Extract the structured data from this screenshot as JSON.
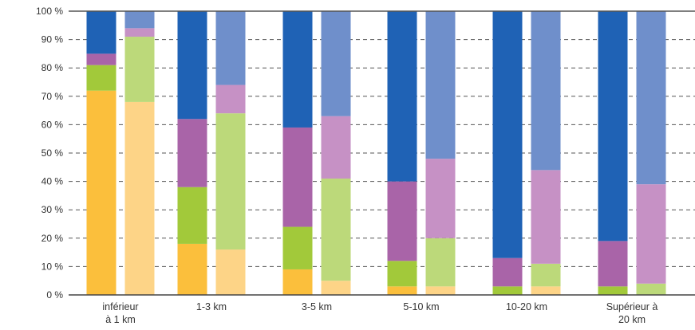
{
  "chart_data": {
    "type": "bar",
    "stacked": true,
    "percent": true,
    "title": "",
    "xlabel": "",
    "ylabel": "",
    "ylim": [
      0,
      100
    ],
    "y_ticks": [
      "0 %",
      "10 %",
      "20 %",
      "30 %",
      "40 %",
      "50 %",
      "60 %",
      "70 %",
      "80 %",
      "90 %",
      "100 %"
    ],
    "grid": "dashed horizontal",
    "legend": "none",
    "categories": [
      {
        "lines": [
          "inférieur",
          "à 1 km"
        ]
      },
      {
        "lines": [
          "1-3 km"
        ]
      },
      {
        "lines": [
          "3-5 km"
        ]
      },
      {
        "lines": [
          "5-10 km"
        ]
      },
      {
        "lines": [
          "10-20 km"
        ]
      },
      {
        "lines": [
          "Supérieur à",
          "20 km"
        ]
      }
    ],
    "bars_per_category": 2,
    "series": [
      {
        "values_bar1": [
          72,
          18,
          9,
          3,
          0,
          0
        ],
        "values_bar2": [
          68,
          16,
          5,
          3,
          3,
          0
        ],
        "colors": [
          "#fbbf3c",
          "#fdd487"
        ]
      },
      {
        "values_bar1": [
          9,
          20,
          15,
          9,
          3,
          3
        ],
        "values_bar2": [
          23,
          48,
          36,
          17,
          8,
          4
        ],
        "colors": [
          "#a2c93a",
          "#bcd97a"
        ]
      },
      {
        "values_bar1": [
          4,
          24,
          35,
          28,
          10,
          16
        ],
        "values_bar2": [
          3,
          10,
          22,
          28,
          33,
          35
        ],
        "colors": [
          "#a964a8",
          "#c691c5"
        ]
      },
      {
        "values_bar1": [
          15,
          38,
          41,
          60,
          87,
          81
        ],
        "values_bar2": [
          6,
          26,
          37,
          52,
          56,
          61
        ],
        "colors": [
          "#1f62b5",
          "#6f8fcb"
        ]
      }
    ]
  }
}
